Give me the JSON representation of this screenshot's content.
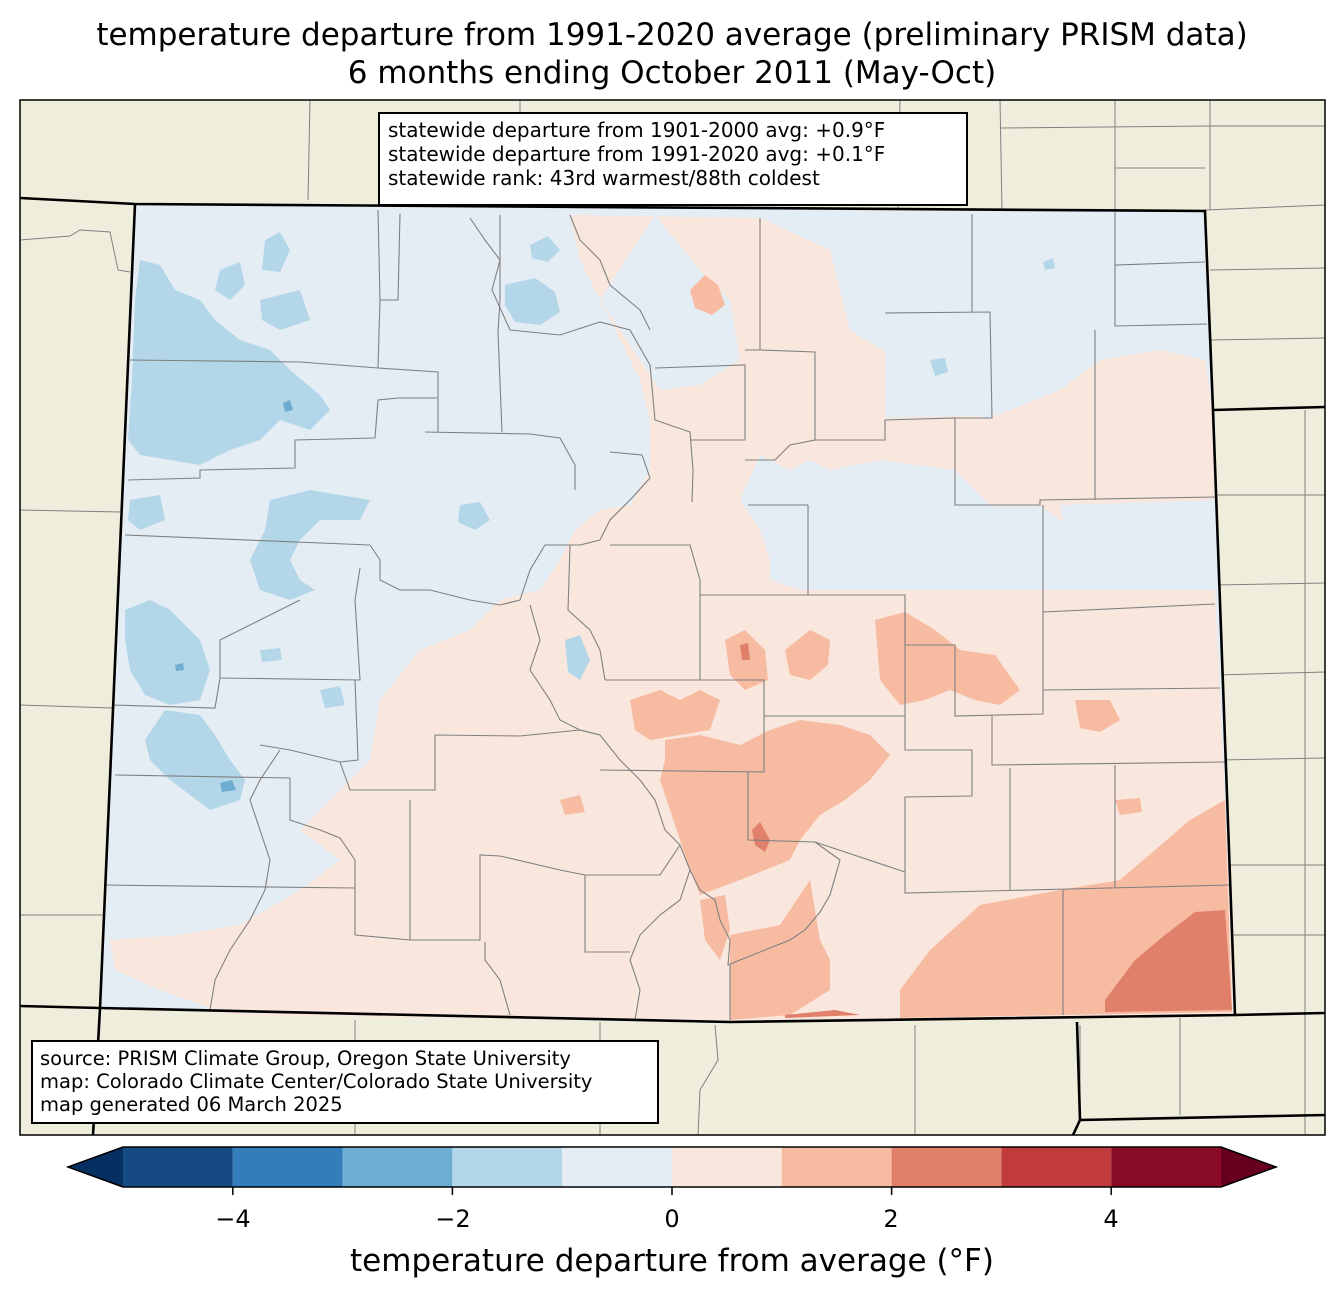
{
  "title": {
    "line1": "temperature departure from 1991-2020 average (preliminary PRISM data)",
    "line2": "6 months ending October 2011 (May-Oct)"
  },
  "stats": {
    "line1": "statewide departure from 1901-2000 avg: +0.9°F",
    "line2": "statewide departure from 1991-2020 avg: +0.1°F",
    "line3": "statewide rank: 43rd warmest/88th coldest"
  },
  "credits": {
    "line1": "source: PRISM Climate Group, Oregon State University",
    "line2": "map: Colorado Climate Center/Colorado State University",
    "line3": "map generated 06 March 2025"
  },
  "colorbar": {
    "label": "temperature departure from average (°F)",
    "ticks": [
      "−4",
      "−2",
      "0",
      "2",
      "4"
    ],
    "tick_values": [
      -4,
      -2,
      0,
      2,
      4
    ],
    "range": [
      -5,
      5
    ],
    "bins": [
      {
        "from": -5,
        "to": -4,
        "color": "#154a84"
      },
      {
        "from": -4,
        "to": -3,
        "color": "#327dba"
      },
      {
        "from": -3,
        "to": -2,
        "color": "#6cadd1"
      },
      {
        "from": -2,
        "to": -1,
        "color": "#b3d6e8"
      },
      {
        "from": -1,
        "to": 0,
        "color": "#e5edf4"
      },
      {
        "from": 0,
        "to": 1,
        "color": "#f9e7de"
      },
      {
        "from": 1,
        "to": 2,
        "color": "#f7bba2"
      },
      {
        "from": 2,
        "to": 3,
        "color": "#e1806a"
      },
      {
        "from": 3,
        "to": 4,
        "color": "#c13b3c"
      },
      {
        "from": 4,
        "to": 5,
        "color": "#8a0b26"
      }
    ],
    "extend_low_color": "#053061",
    "extend_high_color": "#67001f"
  },
  "colors": {
    "outside_land": "#efeedc",
    "border": "#000000",
    "county_lines": "#808080"
  }
}
